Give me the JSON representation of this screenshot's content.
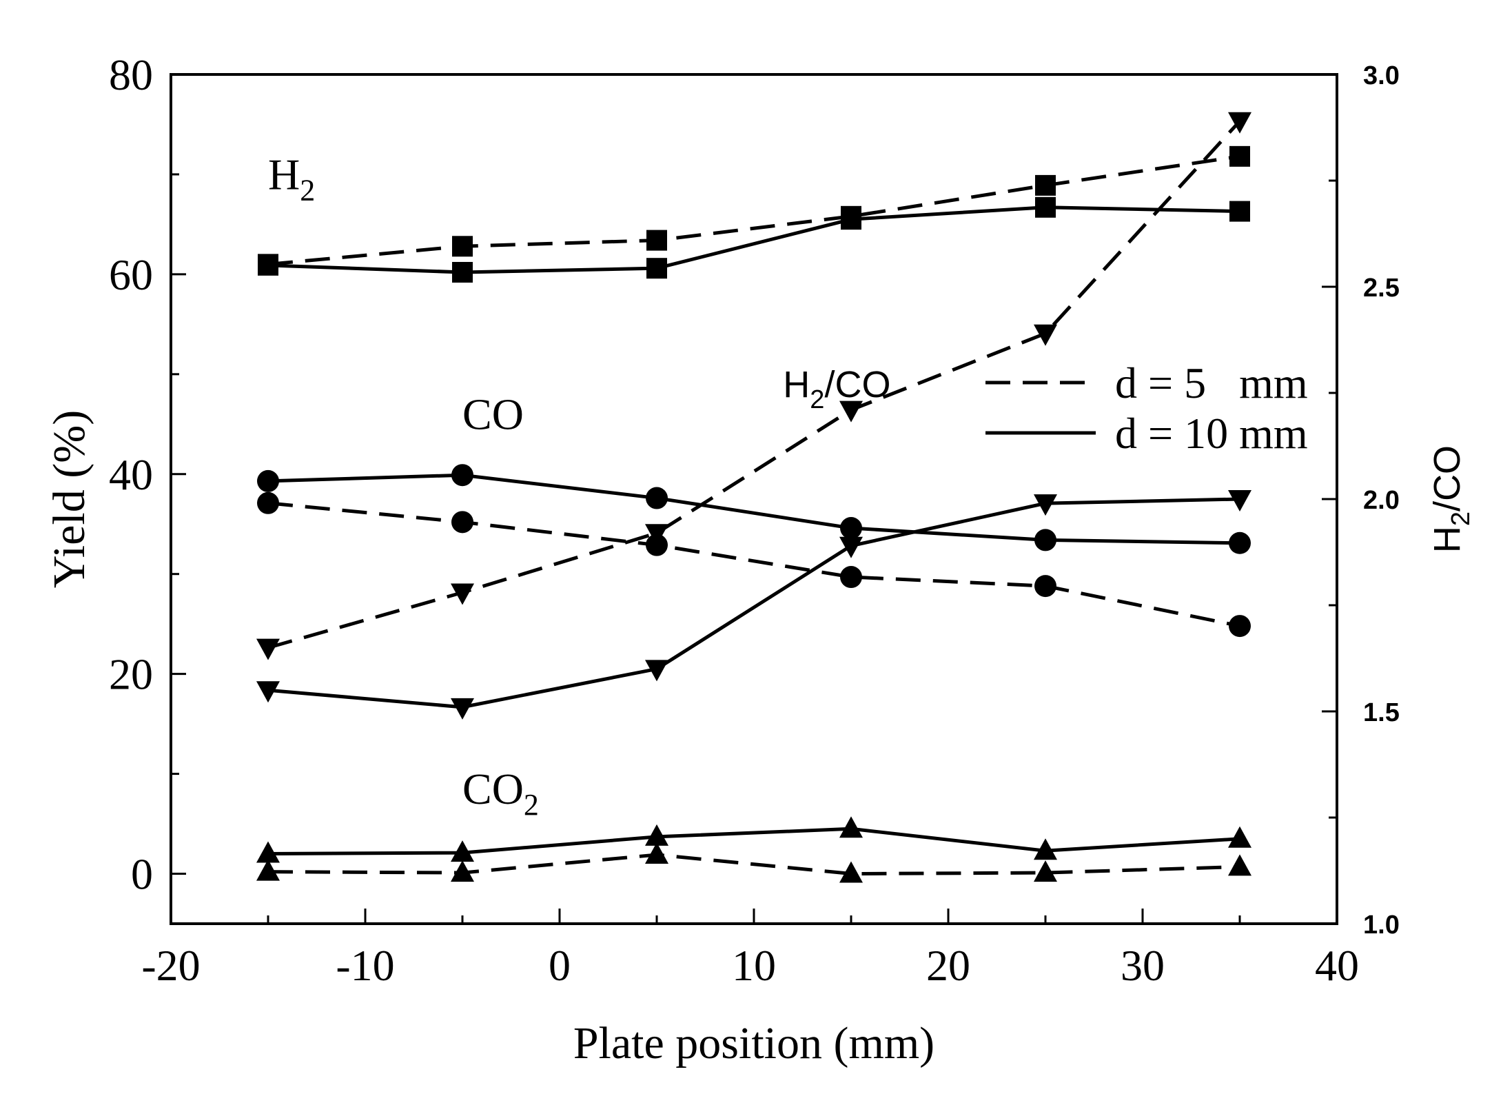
{
  "chart_data": {
    "type": "line",
    "xlabel": "Plate position (mm)",
    "ylabel": "Yield (%)",
    "y2label": "H2/CO",
    "xlim": [
      -20,
      40
    ],
    "ylim": [
      -5,
      80
    ],
    "y2lim": [
      1.0,
      3.0
    ],
    "x_ticks": [
      "-20",
      "-10",
      "0",
      "10",
      "20",
      "30",
      "40"
    ],
    "y_ticks": [
      "0",
      "20",
      "40",
      "60",
      "80"
    ],
    "y2_ticks": [
      "1.0",
      "1.5",
      "2.0",
      "2.5",
      "3.0"
    ],
    "x": [
      -15,
      -5,
      5,
      15,
      25,
      35
    ],
    "series": [
      {
        "name": "H2 (d = 5 mm)",
        "group": "H2",
        "d": "5",
        "axis": "left",
        "marker": "square",
        "style": "dashed",
        "values": [
          61.0,
          62.8,
          63.4,
          65.8,
          68.9,
          71.8
        ]
      },
      {
        "name": "H2 (d = 10 mm)",
        "group": "H2",
        "d": "10",
        "axis": "left",
        "marker": "square",
        "style": "solid",
        "values": [
          60.9,
          60.2,
          60.6,
          65.5,
          66.7,
          66.3
        ]
      },
      {
        "name": "CO (d = 5 mm)",
        "group": "CO",
        "d": "5",
        "axis": "left",
        "marker": "circle",
        "style": "dashed",
        "values": [
          37.1,
          35.2,
          32.9,
          29.7,
          28.8,
          24.8
        ]
      },
      {
        "name": "CO (d = 10 mm)",
        "group": "CO",
        "d": "10",
        "axis": "left",
        "marker": "circle",
        "style": "solid",
        "values": [
          39.3,
          39.9,
          37.6,
          34.6,
          33.4,
          33.1
        ]
      },
      {
        "name": "CO2 (d = 5 mm)",
        "group": "CO2",
        "d": "5",
        "axis": "left",
        "marker": "triangle-up",
        "style": "dashed",
        "values": [
          0.2,
          0.1,
          1.9,
          0.0,
          0.1,
          0.7
        ]
      },
      {
        "name": "CO2 (d = 10 mm)",
        "group": "CO2",
        "d": "10",
        "axis": "left",
        "marker": "triangle-up",
        "style": "solid",
        "values": [
          2.0,
          2.1,
          3.7,
          4.5,
          2.3,
          3.5
        ]
      },
      {
        "name": "H2/CO (d = 5 mm)",
        "group": "H2/CO",
        "d": "5",
        "axis": "right",
        "marker": "triangle-down",
        "style": "dashed",
        "values": [
          1.65,
          1.78,
          1.92,
          2.21,
          2.39,
          2.89
        ]
      },
      {
        "name": "H2/CO (d = 10 mm)",
        "group": "H2/CO",
        "d": "10",
        "axis": "right",
        "marker": "triangle-down",
        "style": "solid",
        "values": [
          1.55,
          1.51,
          1.6,
          1.89,
          1.99,
          2.0
        ]
      }
    ],
    "annotations": [
      {
        "base": "H",
        "sub": "2",
        "after": "",
        "x": -15,
        "y": 68.5,
        "axis": "left"
      },
      {
        "base": "CO",
        "sub": "",
        "after": "",
        "x": -5,
        "y": 44.5,
        "axis": "left"
      },
      {
        "base": "CO",
        "sub": "2",
        "after": "",
        "x": -5,
        "y": 7,
        "axis": "left"
      },
      {
        "base": "H",
        "sub": "2",
        "after": "/CO",
        "x": 11.5,
        "y": 2.24,
        "axis": "right"
      }
    ],
    "legend": [
      {
        "label": "d = 5   mm",
        "style": "dashed"
      },
      {
        "label": "d = 10 mm",
        "style": "solid"
      }
    ],
    "legend_position": "top-right"
  }
}
